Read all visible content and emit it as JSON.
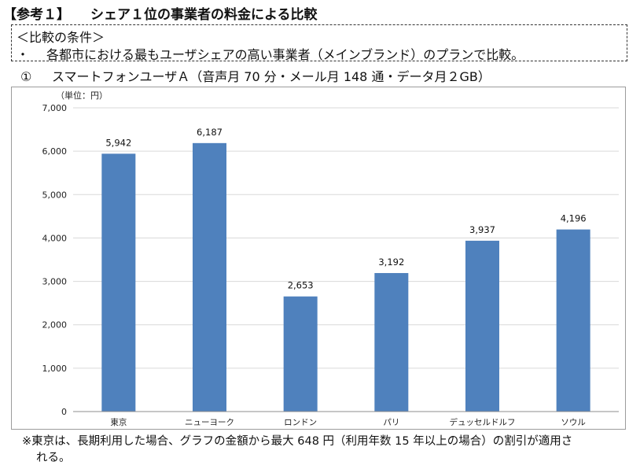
{
  "heading": {
    "tag": "【参考１】",
    "title": "シェア１位の事業者の料金による比較"
  },
  "conditions": {
    "title": "＜比較の条件＞",
    "bullet": "・",
    "text": "各都市における最もユーザシェアの高い事業者（メインブランド）のプランで比較。"
  },
  "subtitle": {
    "number": "①",
    "text": "スマートフォンユーザＡ（音声月 70 分・メール月 148 通・データ月２GB）"
  },
  "chart_data": {
    "type": "bar",
    "title": "",
    "unit_label": "（単位：円）",
    "xlabel": "",
    "ylabel": "",
    "categories": [
      "東京",
      "ニューヨーク",
      "ロンドン",
      "パリ",
      "デュッセルドルフ",
      "ソウル"
    ],
    "values": [
      5942,
      6187,
      2653,
      3192,
      3937,
      4196
    ],
    "value_labels": [
      "5,942",
      "6,187",
      "2,653",
      "3,192",
      "3,937",
      "4,196"
    ],
    "ylim": [
      0,
      7000
    ],
    "yticks": [
      0,
      1000,
      2000,
      3000,
      4000,
      5000,
      6000,
      7000
    ],
    "ytick_labels": [
      "0",
      "1,000",
      "2,000",
      "3,000",
      "4,000",
      "5,000",
      "6,000",
      "7,000"
    ],
    "grid": true,
    "legend": "none",
    "bar_color": "#4f81bd",
    "grid_color": "#d9d9d9"
  },
  "footnote": {
    "line1": "※東京は、長期利用した場合、グラフの金額から最大 648 円（利用年数 15 年以上の場合）の割引が適用さ",
    "line2": "れる。"
  }
}
